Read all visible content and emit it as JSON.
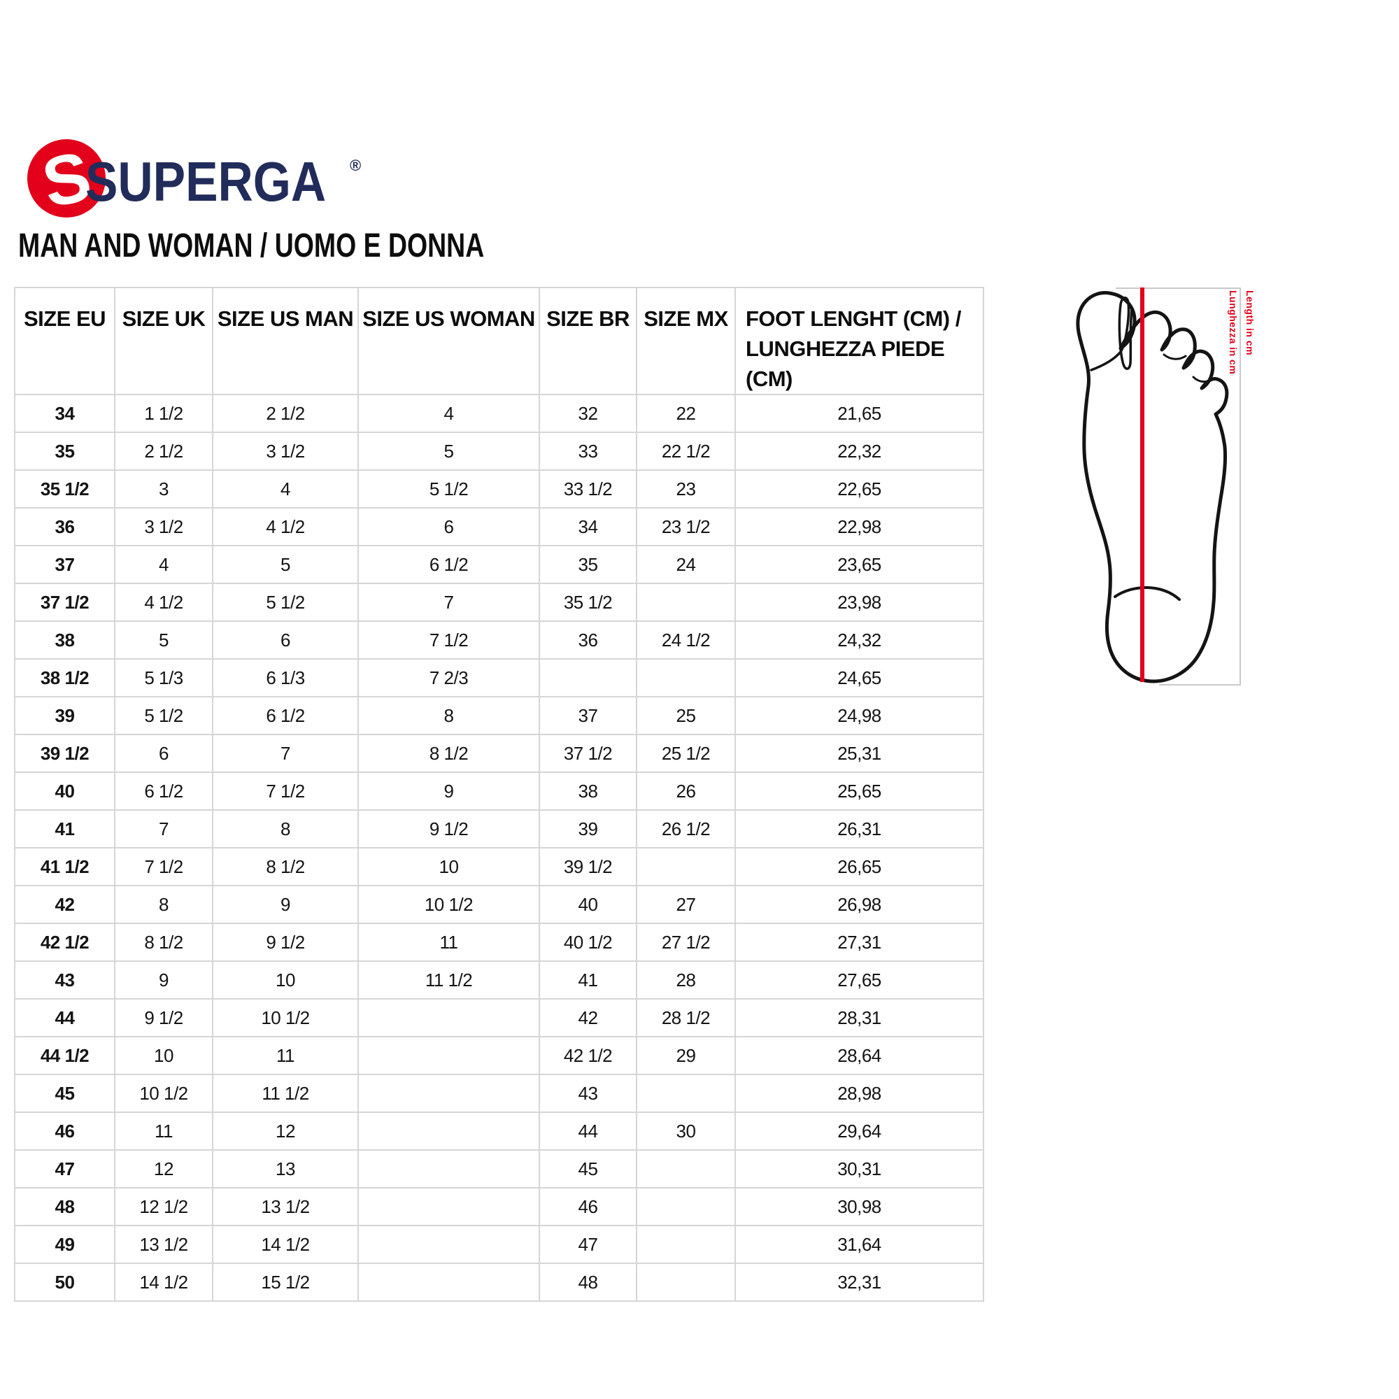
{
  "logo": {
    "brand": "SUPERGA",
    "registered_mark": "®",
    "emblem_icon": "superga-s-ball-icon"
  },
  "subtitle": "MAN AND WOMAN / UOMO E DONNA",
  "colors": {
    "brand_red": "#e2001a",
    "brand_navy": "#222c5a",
    "grid_line": "#d6d6d6",
    "figure_border": "#c9c9c9",
    "text": "#111111"
  },
  "chart_data": {
    "type": "table",
    "title": "MAN AND WOMAN / UOMO E DONNA",
    "columns": [
      "SIZE EU",
      "SIZE UK",
      "SIZE US MAN",
      "SIZE US WOMAN",
      "SIZE BR",
      "SIZE MX",
      "FOOT LENGHT (CM) / LUNGHEZZA PIEDE (CM)"
    ],
    "column_header_lines": [
      [
        "SIZE EU"
      ],
      [
        "SIZE UK"
      ],
      [
        "SIZE US MAN"
      ],
      [
        "SIZE US WOMAN"
      ],
      [
        "SIZE BR"
      ],
      [
        "SIZE MX"
      ],
      [
        "FOOT LENGHT (CM) /",
        "LUNGHEZZA PIEDE (CM)"
      ]
    ],
    "rows": [
      [
        "34",
        "1 1/2",
        "2 1/2",
        "4",
        "32",
        "22",
        "21,65"
      ],
      [
        "35",
        "2 1/2",
        "3 1/2",
        "5",
        "33",
        "22 1/2",
        "22,32"
      ],
      [
        "35 1/2",
        "3",
        "4",
        "5 1/2",
        "33 1/2",
        "23",
        "22,65"
      ],
      [
        "36",
        "3 1/2",
        "4 1/2",
        "6",
        "34",
        "23 1/2",
        "22,98"
      ],
      [
        "37",
        "4",
        "5",
        "6 1/2",
        "35",
        "24",
        "23,65"
      ],
      [
        "37 1/2",
        "4 1/2",
        "5 1/2",
        "7",
        "35 1/2",
        "",
        "23,98"
      ],
      [
        "38",
        "5",
        "6",
        "7 1/2",
        "36",
        "24 1/2",
        "24,32"
      ],
      [
        "38 1/2",
        "5 1/3",
        "6 1/3",
        "7 2/3",
        "",
        "",
        "24,65"
      ],
      [
        "39",
        "5 1/2",
        "6 1/2",
        "8",
        "37",
        "25",
        "24,98"
      ],
      [
        "39 1/2",
        "6",
        "7",
        "8 1/2",
        "37 1/2",
        "25 1/2",
        "25,31"
      ],
      [
        "40",
        "6 1/2",
        "7 1/2",
        "9",
        "38",
        "26",
        "25,65"
      ],
      [
        "41",
        "7",
        "8",
        "9 1/2",
        "39",
        "26 1/2",
        "26,31"
      ],
      [
        "41 1/2",
        "7 1/2",
        "8 1/2",
        "10",
        "39 1/2",
        "",
        "26,65"
      ],
      [
        "42",
        "8",
        "9",
        "10 1/2",
        "40",
        "27",
        "26,98"
      ],
      [
        "42 1/2",
        "8 1/2",
        "9 1/2",
        "11",
        "40 1/2",
        "27 1/2",
        "27,31"
      ],
      [
        "43",
        "9",
        "10",
        "11 1/2",
        "41",
        "28",
        "27,65"
      ],
      [
        "44",
        "9 1/2",
        "10 1/2",
        "",
        "42",
        "28 1/2",
        "28,31"
      ],
      [
        "44 1/2",
        "10",
        "11",
        "",
        "42 1/2",
        "29",
        "28,64"
      ],
      [
        "45",
        "10 1/2",
        "11 1/2",
        "",
        "43",
        "",
        "28,98"
      ],
      [
        "46",
        "11",
        "12",
        "",
        "44",
        "30",
        "29,64"
      ],
      [
        "47",
        "12",
        "13",
        "",
        "45",
        "",
        "30,31"
      ],
      [
        "48",
        "12 1/2",
        "13 1/2",
        "",
        "46",
        "",
        "30,98"
      ],
      [
        "49",
        "13 1/2",
        "14 1/2",
        "",
        "47",
        "",
        "31,64"
      ],
      [
        "50",
        "14 1/2",
        "15 1/2",
        "",
        "48",
        "",
        "32,31"
      ]
    ]
  },
  "figure": {
    "name": "foot-measurement-diagram",
    "labels": {
      "length_en": "Length in cm",
      "length_it": "Lunghezza in cm"
    }
  }
}
